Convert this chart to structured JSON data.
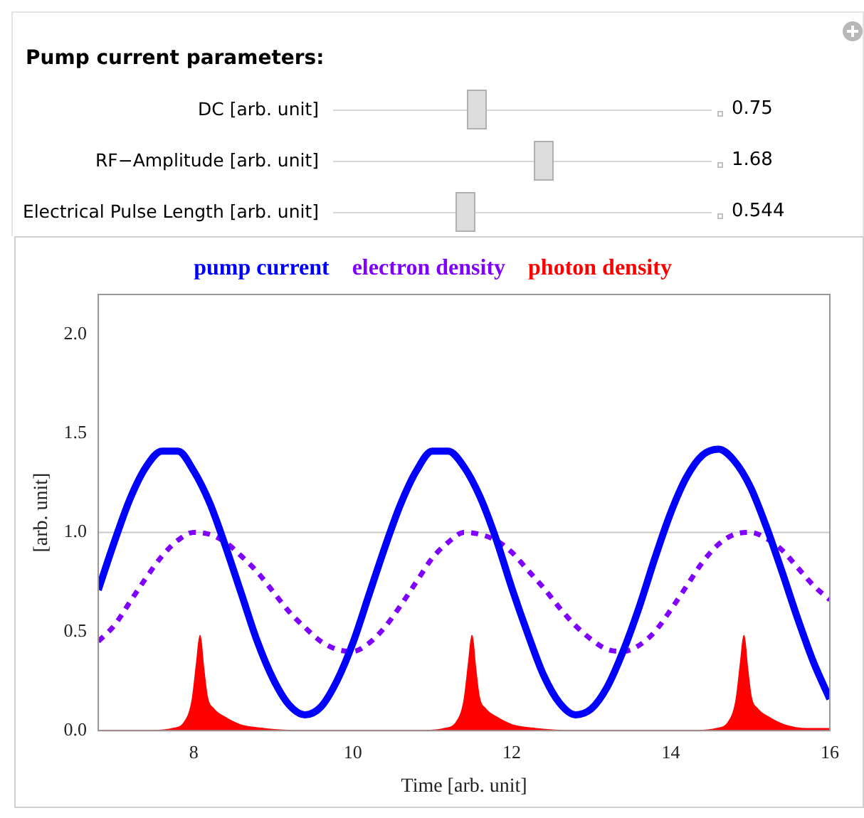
{
  "chart_data": {
    "type": "line",
    "xlabel": "Time [arb. unit]",
    "ylabel": "[arb. unit]",
    "legend": "top",
    "annotations": [
      "Pump current parameters:",
      "DC [arb. unit]",
      "0.75",
      "RF−Amplitude [arb. unit]",
      "1.68",
      "Electrical Pulse Length [arb. unit]",
      "0.544"
    ],
    "xlim": [
      6.8,
      16
    ],
    "ylim": [
      0,
      2.2
    ],
    "xticks": [
      8,
      10,
      12,
      14,
      16
    ],
    "yticks": [
      {
        "value": 0,
        "label": "0.0"
      },
      {
        "value": 0.5,
        "label": "0.5"
      },
      {
        "value": 1,
        "label": "1.0"
      },
      {
        "value": 1.5,
        "label": "1.5"
      },
      {
        "value": 2,
        "label": "2.0"
      }
    ],
    "ref_lines": [
      {
        "axis": "y",
        "value": 1,
        "color": "#c8c8c8"
      }
    ],
    "x": [
      6.8,
      7.0,
      7.2,
      7.4,
      7.6,
      7.8,
      8.0,
      8.2,
      8.4,
      8.6,
      8.8,
      9.0,
      9.2,
      9.4,
      9.6,
      9.8,
      10.0,
      10.2,
      10.4,
      10.6,
      10.8,
      11.0,
      11.2,
      11.4,
      11.6,
      11.8,
      12.0,
      12.2,
      12.4,
      12.6,
      12.8,
      13.0,
      13.2,
      13.4,
      13.6,
      13.8,
      14.0,
      14.2,
      14.4,
      14.6,
      14.8,
      15.0,
      15.2,
      15.4,
      15.6,
      15.8,
      16.0
    ],
    "series": [
      {
        "name": "pump current",
        "color": "#0000ff",
        "line_style": "solid",
        "values": [
          0.71,
          0.95,
          1.17,
          1.33,
          1.41,
          1.41,
          1.31,
          1.15,
          0.93,
          0.69,
          0.45,
          0.26,
          0.13,
          0.08,
          0.12,
          0.25,
          0.44,
          0.68,
          0.92,
          1.14,
          1.31,
          1.41,
          1.41,
          1.33,
          1.18,
          0.97,
          0.72,
          0.49,
          0.28,
          0.14,
          0.08,
          0.11,
          0.22,
          0.4,
          0.62,
          0.87,
          1.1,
          1.28,
          1.39,
          1.42,
          1.36,
          1.23,
          1.03,
          0.8,
          0.56,
          0.34,
          0.16
        ]
      },
      {
        "name": "electron density",
        "color": "#8000ff",
        "line_style": "dashed",
        "values": [
          0.45,
          0.53,
          0.65,
          0.77,
          0.88,
          0.96,
          1.0,
          0.99,
          0.95,
          0.88,
          0.8,
          0.7,
          0.6,
          0.52,
          0.45,
          0.41,
          0.4,
          0.44,
          0.52,
          0.63,
          0.75,
          0.87,
          0.95,
          1.0,
          0.99,
          0.96,
          0.9,
          0.81,
          0.72,
          0.62,
          0.53,
          0.46,
          0.41,
          0.4,
          0.43,
          0.5,
          0.61,
          0.73,
          0.85,
          0.94,
          0.99,
          1.0,
          0.97,
          0.91,
          0.82,
          0.73,
          0.66
        ]
      },
      {
        "name": "photon density",
        "color": "#ff0000",
        "type": "area",
        "x": [
          6.8,
          7.48,
          7.73,
          7.88,
          7.98,
          8.04,
          8.08,
          8.12,
          8.17,
          8.25,
          8.38,
          8.58,
          8.88,
          9.28,
          10.9,
          11.15,
          11.3,
          11.4,
          11.46,
          11.5,
          11.54,
          11.59,
          11.67,
          11.8,
          12.0,
          12.3,
          12.7,
          14.32,
          14.57,
          14.72,
          14.82,
          14.88,
          14.92,
          14.96,
          15.01,
          15.09,
          15.22,
          15.42,
          15.72,
          16.0
        ],
        "values": [
          0,
          0,
          0.01,
          0.04,
          0.15,
          0.35,
          0.48,
          0.33,
          0.17,
          0.11,
          0.07,
          0.03,
          0.01,
          0,
          0,
          0.01,
          0.04,
          0.15,
          0.35,
          0.48,
          0.33,
          0.17,
          0.11,
          0.07,
          0.03,
          0.01,
          0,
          0,
          0.01,
          0.04,
          0.15,
          0.35,
          0.48,
          0.33,
          0.17,
          0.11,
          0.07,
          0.03,
          0.01,
          0.01
        ]
      }
    ]
  }
}
